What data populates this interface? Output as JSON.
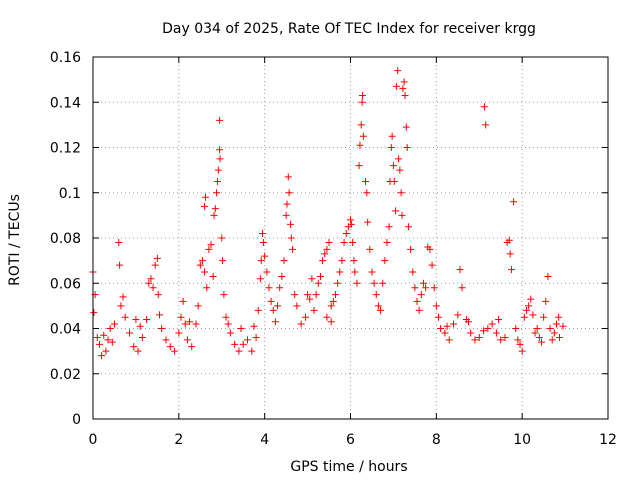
{
  "chart_data": {
    "type": "scatter",
    "title": "Day 034 of 2025, Rate Of TEC Index for receiver krgg",
    "xlabel": "GPS time / hours",
    "ylabel": "ROTI / TECUs",
    "xlim": [
      0,
      12
    ],
    "ylim": [
      0,
      0.16
    ],
    "xticks": [
      0,
      2,
      4,
      6,
      8,
      10,
      12
    ],
    "xtick_labels": [
      "0",
      "2",
      "4",
      "6",
      "8",
      "10",
      "12"
    ],
    "yticks": [
      0,
      0.02,
      0.04,
      0.06,
      0.08,
      0.1,
      0.12,
      0.14,
      0.16
    ],
    "ytick_labels": [
      "0",
      "0.02",
      "0.04",
      "0.06",
      "0.08",
      "0.1",
      "0.12",
      "0.14",
      "0.16"
    ],
    "grid": true,
    "marker": "+",
    "color": "#ff0000",
    "series": [
      {
        "name": "ROTI",
        "points": [
          [
            0.0,
            0.065
          ],
          [
            0.02,
            0.047
          ],
          [
            0.05,
            0.055
          ],
          [
            0.1,
            0.036
          ],
          [
            0.15,
            0.033
          ],
          [
            0.2,
            0.028
          ],
          [
            0.3,
            0.03
          ],
          [
            0.35,
            0.035
          ],
          [
            0.45,
            0.034
          ],
          [
            0.5,
            0.042
          ],
          [
            0.6,
            0.078
          ],
          [
            0.62,
            0.068
          ],
          [
            0.65,
            0.05
          ],
          [
            0.7,
            0.054
          ],
          [
            0.75,
            0.045
          ],
          [
            0.85,
            0.038
          ],
          [
            0.95,
            0.032
          ],
          [
            1.05,
            0.03
          ],
          [
            1.15,
            0.036
          ],
          [
            1.25,
            0.044
          ],
          [
            1.3,
            0.06
          ],
          [
            1.35,
            0.062
          ],
          [
            1.4,
            0.058
          ],
          [
            1.45,
            0.068
          ],
          [
            1.5,
            0.071
          ],
          [
            1.52,
            0.055
          ],
          [
            1.55,
            0.046
          ],
          [
            1.6,
            0.04
          ],
          [
            1.7,
            0.035
          ],
          [
            1.8,
            0.032
          ],
          [
            1.9,
            0.03
          ],
          [
            2.0,
            0.038
          ],
          [
            2.05,
            0.045
          ],
          [
            2.1,
            0.052
          ],
          [
            2.15,
            0.042
          ],
          [
            2.2,
            0.035
          ],
          [
            2.3,
            0.032
          ],
          [
            2.4,
            0.042
          ],
          [
            2.45,
            0.05
          ],
          [
            2.5,
            0.068
          ],
          [
            2.55,
            0.07
          ],
          [
            2.6,
            0.065
          ],
          [
            2.65,
            0.058
          ],
          [
            2.6,
            0.094
          ],
          [
            2.62,
            0.098
          ],
          [
            2.7,
            0.075
          ],
          [
            2.75,
            0.077
          ],
          [
            2.8,
            0.063
          ],
          [
            2.82,
            0.09
          ],
          [
            2.85,
            0.093
          ],
          [
            2.88,
            0.1
          ],
          [
            2.9,
            0.105
          ],
          [
            2.92,
            0.11
          ],
          [
            2.95,
            0.119
          ],
          [
            2.96,
            0.115
          ],
          [
            2.95,
            0.132
          ],
          [
            3.0,
            0.08
          ],
          [
            3.02,
            0.07
          ],
          [
            3.05,
            0.055
          ],
          [
            3.1,
            0.045
          ],
          [
            3.2,
            0.038
          ],
          [
            3.3,
            0.033
          ],
          [
            3.4,
            0.03
          ],
          [
            3.5,
            0.033
          ],
          [
            3.6,
            0.035
          ],
          [
            3.7,
            0.03
          ],
          [
            3.8,
            0.036
          ],
          [
            3.85,
            0.048
          ],
          [
            3.9,
            0.062
          ],
          [
            3.92,
            0.07
          ],
          [
            3.95,
            0.082
          ],
          [
            3.97,
            0.078
          ],
          [
            4.0,
            0.072
          ],
          [
            4.05,
            0.065
          ],
          [
            4.1,
            0.058
          ],
          [
            4.15,
            0.052
          ],
          [
            4.2,
            0.048
          ],
          [
            4.25,
            0.043
          ],
          [
            4.3,
            0.05
          ],
          [
            4.35,
            0.058
          ],
          [
            4.4,
            0.063
          ],
          [
            4.45,
            0.07
          ],
          [
            4.5,
            0.09
          ],
          [
            4.52,
            0.095
          ],
          [
            4.55,
            0.107
          ],
          [
            4.57,
            0.1
          ],
          [
            4.6,
            0.086
          ],
          [
            4.62,
            0.08
          ],
          [
            4.65,
            0.075
          ],
          [
            4.7,
            0.055
          ],
          [
            4.75,
            0.05
          ],
          [
            4.85,
            0.042
          ],
          [
            4.95,
            0.045
          ],
          [
            5.0,
            0.055
          ],
          [
            5.05,
            0.053
          ],
          [
            5.1,
            0.062
          ],
          [
            5.15,
            0.048
          ],
          [
            5.2,
            0.055
          ],
          [
            5.25,
            0.06
          ],
          [
            5.3,
            0.063
          ],
          [
            5.35,
            0.07
          ],
          [
            5.4,
            0.073
          ],
          [
            5.45,
            0.075
          ],
          [
            5.5,
            0.078
          ],
          [
            5.55,
            0.05
          ],
          [
            5.6,
            0.052
          ],
          [
            5.65,
            0.055
          ],
          [
            5.7,
            0.06
          ],
          [
            5.75,
            0.065
          ],
          [
            5.8,
            0.07
          ],
          [
            5.85,
            0.078
          ],
          [
            5.9,
            0.082
          ],
          [
            5.95,
            0.085
          ],
          [
            6.0,
            0.088
          ],
          [
            6.02,
            0.086
          ],
          [
            6.05,
            0.078
          ],
          [
            6.08,
            0.07
          ],
          [
            6.1,
            0.065
          ],
          [
            6.15,
            0.06
          ],
          [
            6.2,
            0.112
          ],
          [
            6.22,
            0.121
          ],
          [
            6.25,
            0.13
          ],
          [
            6.27,
            0.14
          ],
          [
            6.28,
            0.143
          ],
          [
            6.3,
            0.125
          ],
          [
            6.35,
            0.105
          ],
          [
            6.38,
            0.1
          ],
          [
            6.4,
            0.087
          ],
          [
            6.45,
            0.075
          ],
          [
            6.5,
            0.065
          ],
          [
            6.55,
            0.06
          ],
          [
            6.6,
            0.055
          ],
          [
            6.65,
            0.05
          ],
          [
            6.7,
            0.048
          ],
          [
            6.75,
            0.06
          ],
          [
            6.8,
            0.07
          ],
          [
            6.85,
            0.078
          ],
          [
            6.9,
            0.085
          ],
          [
            6.92,
            0.105
          ],
          [
            6.95,
            0.12
          ],
          [
            6.97,
            0.125
          ],
          [
            7.0,
            0.112
          ],
          [
            7.02,
            0.105
          ],
          [
            7.05,
            0.092
          ],
          [
            7.07,
            0.147
          ],
          [
            7.1,
            0.154
          ],
          [
            7.12,
            0.115
          ],
          [
            7.15,
            0.11
          ],
          [
            7.18,
            0.1
          ],
          [
            7.2,
            0.09
          ],
          [
            7.22,
            0.146
          ],
          [
            7.25,
            0.149
          ],
          [
            7.27,
            0.143
          ],
          [
            7.3,
            0.129
          ],
          [
            7.32,
            0.12
          ],
          [
            7.35,
            0.085
          ],
          [
            7.4,
            0.075
          ],
          [
            7.45,
            0.065
          ],
          [
            7.5,
            0.058
          ],
          [
            7.55,
            0.052
          ],
          [
            7.6,
            0.048
          ],
          [
            7.65,
            0.055
          ],
          [
            7.7,
            0.06
          ],
          [
            7.75,
            0.058
          ],
          [
            7.8,
            0.076
          ],
          [
            7.85,
            0.075
          ],
          [
            7.9,
            0.068
          ],
          [
            7.95,
            0.058
          ],
          [
            8.0,
            0.05
          ],
          [
            8.05,
            0.045
          ],
          [
            8.1,
            0.04
          ],
          [
            8.2,
            0.038
          ],
          [
            8.3,
            0.035
          ],
          [
            8.4,
            0.042
          ],
          [
            8.5,
            0.046
          ],
          [
            8.55,
            0.066
          ],
          [
            8.6,
            0.058
          ],
          [
            8.7,
            0.044
          ],
          [
            8.8,
            0.038
          ],
          [
            8.9,
            0.035
          ],
          [
            9.0,
            0.036
          ],
          [
            9.1,
            0.039
          ],
          [
            9.12,
            0.138
          ],
          [
            9.15,
            0.13
          ],
          [
            9.2,
            0.04
          ],
          [
            9.3,
            0.042
          ],
          [
            9.4,
            0.038
          ],
          [
            9.5,
            0.035
          ],
          [
            9.6,
            0.036
          ],
          [
            9.65,
            0.078
          ],
          [
            9.7,
            0.079
          ],
          [
            9.72,
            0.073
          ],
          [
            9.75,
            0.066
          ],
          [
            9.8,
            0.096
          ],
          [
            9.85,
            0.04
          ],
          [
            9.9,
            0.035
          ],
          [
            9.95,
            0.033
          ],
          [
            10.0,
            0.03
          ],
          [
            10.05,
            0.045
          ],
          [
            10.1,
            0.048
          ],
          [
            10.15,
            0.05
          ],
          [
            10.2,
            0.053
          ],
          [
            10.25,
            0.046
          ],
          [
            10.3,
            0.038
          ],
          [
            10.35,
            0.04
          ],
          [
            10.4,
            0.036
          ],
          [
            10.45,
            0.034
          ],
          [
            10.5,
            0.045
          ],
          [
            10.55,
            0.052
          ],
          [
            10.6,
            0.063
          ],
          [
            10.65,
            0.04
          ],
          [
            10.7,
            0.035
          ],
          [
            10.75,
            0.038
          ],
          [
            10.8,
            0.042
          ],
          [
            10.85,
            0.045
          ],
          [
            10.87,
            0.036
          ],
          [
            1.0,
            0.044
          ],
          [
            1.1,
            0.041
          ],
          [
            0.4,
            0.04
          ],
          [
            0.25,
            0.037
          ],
          [
            3.15,
            0.042
          ],
          [
            3.45,
            0.04
          ],
          [
            3.75,
            0.041
          ],
          [
            5.45,
            0.045
          ],
          [
            5.55,
            0.043
          ],
          [
            8.25,
            0.041
          ],
          [
            8.75,
            0.043
          ],
          [
            9.45,
            0.044
          ],
          [
            10.95,
            0.041
          ],
          [
            2.25,
            0.043
          ]
        ]
      }
    ]
  }
}
